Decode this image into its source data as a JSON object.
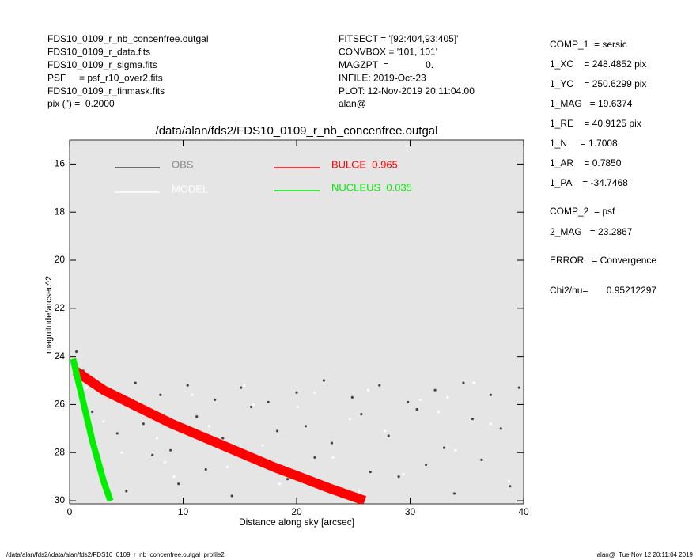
{
  "header": {
    "left": [
      "FDS10_0109_r_nb_concenfree.outgal",
      "FDS10_0109_r_data.fits",
      "FDS10_0109_r_sigma.fits",
      "PSF     = psf_r10_over2.fits",
      "FDS10_0109_r_finmask.fits",
      "pix (\") =  0.2000"
    ],
    "middle": [
      "FITSECT = '[92:404,93:405]'",
      "CONVBOX = '101, 101'",
      "MAGZPT  =              0.",
      "INFILE: 2019-Oct-23",
      "PLOT: 12-Nov-2019 20:11:04.00",
      "alan@"
    ],
    "right": [
      "COMP_1  = sersic",
      "1_XC    = 248.4852 pix",
      "1_YC    = 250.6299 pix",
      "1_MAG   = 19.6374",
      "1_RE    = 40.9125 pix",
      "1_N     = 1.7008",
      "1_AR    = 0.7850",
      "1_PA    = -34.7468",
      "COMP_2  = psf",
      "2_MAG   = 23.2867",
      "ERROR   = Convergence",
      "Chi2/nu=       0.95212297"
    ]
  },
  "footer": {
    "left": "/data/alan/fds2//data/alan/fds2/FDS10_0109_r_nb_concenfree.outgal_profile2",
    "right": "alan@  Tue Nov 12 20:11:04 2019"
  },
  "chart_data": {
    "type": "scatter",
    "title": "/data/alan/fds2/FDS10_0109_r_nb_concenfree.outgal",
    "xlabel": "Distance along sky [arcsec]",
    "ylabel": "magnitude/arcsec^2",
    "xlim": [
      0,
      40
    ],
    "ylim": [
      30.13,
      15.0
    ],
    "xticks": [
      0,
      10,
      20,
      30,
      40
    ],
    "yticks": [
      16,
      18,
      20,
      22,
      24,
      26,
      28,
      30
    ],
    "series": [
      {
        "name": "OBS",
        "color": "#444444",
        "type": "scatter",
        "x": [
          0.6,
          1.2,
          2,
          2.8,
          3.5,
          4.2,
          5,
          5.8,
          6.5,
          7.3,
          8,
          8.9,
          9.6,
          10.4,
          11.2,
          12,
          12.8,
          13.5,
          14.3,
          15.1,
          16,
          16.8,
          17.5,
          18.3,
          19.2,
          20,
          20.8,
          21.6,
          22.4,
          23.1,
          24,
          24.9,
          25.7,
          26.5,
          27.3,
          28.1,
          29,
          29.8,
          30.6,
          31.4,
          32.2,
          33,
          33.9,
          34.7,
          35.5,
          36.3,
          37.1,
          38,
          38.8,
          39.6
        ],
        "values": [
          23.8,
          24.6,
          26.3,
          28.9,
          25.4,
          27.2,
          29.6,
          25.1,
          26.8,
          28.1,
          25.6,
          27.9,
          29.3,
          25.2,
          26.5,
          28.7,
          25.8,
          27.4,
          29.8,
          25.3,
          26.1,
          28.4,
          25.9,
          27.1,
          29.1,
          25.5,
          26.9,
          28.2,
          25.0,
          27.6,
          29.5,
          25.7,
          26.4,
          28.8,
          25.2,
          27.3,
          29.0,
          25.9,
          26.2,
          28.5,
          25.4,
          27.8,
          29.7,
          25.1,
          26.6,
          28.3,
          25.6,
          27.0,
          29.4,
          25.3
        ]
      },
      {
        "name": "MODEL",
        "color": "#ffffff",
        "type": "scatter",
        "x": [
          1.5,
          3,
          4.6,
          6.1,
          7.7,
          9.2,
          10.8,
          12.3,
          13.9,
          15.4,
          17,
          18.5,
          20.1,
          21.6,
          23.2,
          24.7,
          26.3,
          27.8,
          29.4,
          30.9,
          32.5,
          34,
          35.6,
          37.1,
          38.7,
          2.2,
          8.4,
          16.2,
          25.5,
          33.3
        ],
        "values": [
          25.3,
          26.7,
          28.0,
          25.9,
          27.4,
          29.0,
          25.6,
          26.9,
          28.6,
          25.2,
          27.7,
          29.3,
          26.1,
          25.5,
          28.2,
          26.6,
          25.4,
          27.1,
          28.9,
          25.8,
          26.3,
          27.9,
          25.1,
          26.8,
          29.2,
          27.6,
          28.4,
          26.0,
          29.6,
          25.7
        ]
      },
      {
        "name": "BULGE  0.965",
        "color": "#ff0000",
        "type": "line",
        "x": [
          0.5,
          3,
          6,
          9,
          13,
          18,
          23,
          26
        ],
        "values": [
          24.6,
          25.4,
          26.1,
          26.8,
          27.6,
          28.6,
          29.5,
          30.0
        ]
      },
      {
        "name": "NUCLEUS  0.035",
        "color": "#00ee00",
        "type": "line",
        "x": [
          0.3,
          1,
          2,
          3,
          3.6
        ],
        "values": [
          24.1,
          25.5,
          27.5,
          29.2,
          30.0
        ]
      }
    ]
  }
}
